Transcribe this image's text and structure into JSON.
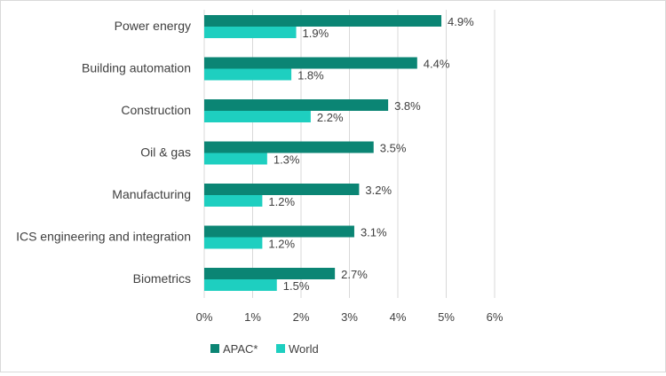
{
  "chart_data": {
    "type": "bar",
    "orientation": "horizontal",
    "categories": [
      "Power energy",
      "Building automation",
      "Construction",
      "Oil & gas",
      "Manufacturing",
      "ICS engineering and integration",
      "Biometrics"
    ],
    "series": [
      {
        "name": "APAC*",
        "values": [
          4.9,
          4.4,
          3.8,
          3.5,
          3.2,
          3.1,
          2.7
        ],
        "labels": [
          "4.9%",
          "4.4%",
          "3.8%",
          "3.5%",
          "3.2%",
          "3.1%",
          "2.7%"
        ],
        "color": "#0b8574"
      },
      {
        "name": "World",
        "values": [
          1.9,
          1.8,
          2.2,
          1.3,
          1.2,
          1.2,
          1.5
        ],
        "labels": [
          "1.9%",
          "1.8%",
          "2.2%",
          "1.3%",
          "1.2%",
          "1.2%",
          "1.5%"
        ],
        "color": "#1ecfc0"
      }
    ],
    "xlim": [
      0,
      6
    ],
    "xticks": [
      "0%",
      "1%",
      "2%",
      "3%",
      "4%",
      "5%",
      "6%"
    ],
    "grid": true,
    "legend": "bottom-left"
  },
  "colors": {
    "grid": "#d9d9d9",
    "text": "#404040"
  }
}
